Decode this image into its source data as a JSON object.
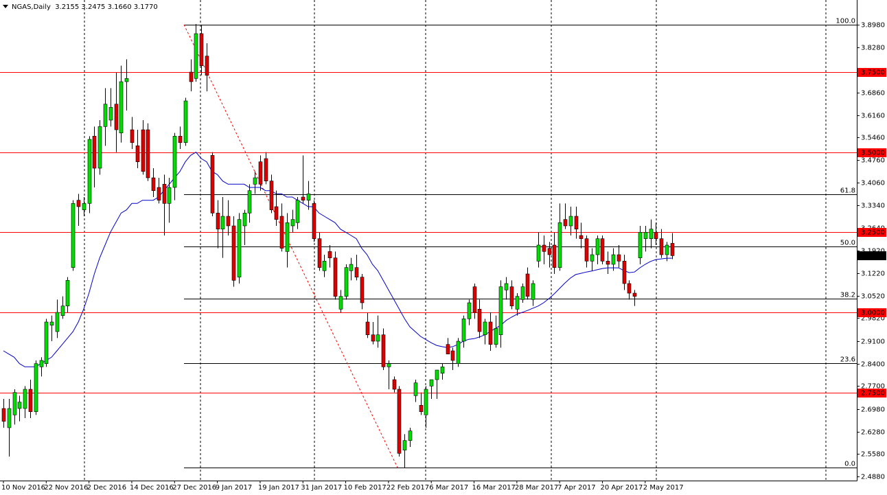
{
  "chart_data": {
    "type": "candlestick",
    "title": "NGAS,Daily  3.2155 3.2475 3.1660 3.1770",
    "ylim": [
      2.475,
      3.975
    ],
    "yticks": [
      {
        "value": 3.898,
        "label": "3.8980"
      },
      {
        "value": 3.828,
        "label": "3.8280"
      },
      {
        "value": 3.686,
        "label": "3.6860"
      },
      {
        "value": 3.616,
        "label": "3.6160"
      },
      {
        "value": 3.546,
        "label": "3.5460"
      },
      {
        "value": 3.476,
        "label": "3.4760"
      },
      {
        "value": 3.406,
        "label": "3.4060"
      },
      {
        "value": 3.334,
        "label": "3.3340"
      },
      {
        "value": 3.264,
        "label": "3.2640"
      },
      {
        "value": 3.192,
        "label": "3.1920"
      },
      {
        "value": 3.122,
        "label": "3.1220"
      },
      {
        "value": 3.052,
        "label": "3.0520"
      },
      {
        "value": 2.982,
        "label": "2.9820"
      },
      {
        "value": 2.91,
        "label": "2.9100"
      },
      {
        "value": 2.84,
        "label": "2.8400"
      },
      {
        "value": 2.77,
        "label": "2.7700"
      },
      {
        "value": 2.698,
        "label": "2.6980"
      },
      {
        "value": 2.628,
        "label": "2.6280"
      },
      {
        "value": 2.558,
        "label": "2.5580"
      },
      {
        "value": 2.488,
        "label": "2.4880"
      }
    ],
    "levels": [
      {
        "value": 3.75,
        "label": "3.7500"
      },
      {
        "value": 3.5,
        "label": "3.5000"
      },
      {
        "value": 3.25,
        "label": "3.2500"
      },
      {
        "value": 3.0,
        "label": "3.0000"
      },
      {
        "value": 2.75,
        "label": "2.7500"
      }
    ],
    "level_color": "#ff0000",
    "last_price": {
      "value": 3.177,
      "label": "3.1770"
    },
    "fib_levels": [
      {
        "value": 3.898,
        "label": "100.0"
      },
      {
        "value": 3.3686,
        "label": "61.8"
      },
      {
        "value": 3.2057,
        "label": "50.0"
      },
      {
        "value": 3.0429,
        "label": "38.2"
      },
      {
        "value": 2.8415,
        "label": "23.6"
      },
      {
        "value": 2.5157,
        "label": "0.0"
      }
    ],
    "fib_color": "#ff0000",
    "up_color": "#00dd00",
    "down_color": "#dd0000",
    "ma_color": "#0000cc",
    "categories": [
      "10 Nov 2016",
      null,
      null,
      null,
      null,
      null,
      null,
      null,
      "22 Nov 2016",
      null,
      null,
      null,
      null,
      null,
      null,
      null,
      "2 Dec 2016",
      null,
      null,
      null,
      null,
      null,
      null,
      null,
      "14 Dec 2016",
      null,
      null,
      null,
      null,
      null,
      null,
      null,
      "27 Dec 2016",
      null,
      null,
      null,
      null,
      null,
      null,
      null,
      "9 Jan 2017",
      null,
      null,
      null,
      null,
      null,
      null,
      null,
      "19 Jan 2017",
      null,
      null,
      null,
      null,
      null,
      null,
      null,
      "31 Jan 2017",
      null,
      null,
      null,
      null,
      null,
      null,
      null,
      "10 Feb 2017",
      null,
      null,
      null,
      null,
      null,
      null,
      null,
      "22 Feb 2017",
      null,
      null,
      null,
      null,
      null,
      null,
      null,
      "6 Mar 2017",
      null,
      null,
      null,
      null,
      null,
      null,
      null,
      "16 Mar 2017",
      null,
      null,
      null,
      null,
      null,
      null,
      null,
      "28 Mar 2017",
      null,
      null,
      null,
      null,
      null,
      null,
      null,
      "7 Apr 2017",
      null,
      null,
      null,
      null,
      null,
      null,
      null,
      "20 Apr 2017",
      null,
      null,
      null,
      null,
      null,
      null,
      null,
      "2 May 2017",
      null,
      null,
      null,
      null,
      null
    ],
    "candles": [
      [
        2.7,
        2.73,
        2.64,
        2.66
      ],
      [
        2.64,
        2.73,
        2.55,
        2.7
      ],
      [
        2.68,
        2.76,
        2.65,
        2.75
      ],
      [
        2.7,
        2.74,
        2.66,
        2.72
      ],
      [
        2.7,
        2.77,
        2.67,
        2.76
      ],
      [
        2.76,
        2.79,
        2.67,
        2.69
      ],
      [
        2.69,
        2.85,
        2.68,
        2.84
      ],
      [
        2.83,
        2.86,
        2.8,
        2.85
      ],
      [
        2.84,
        2.98,
        2.83,
        2.97
      ],
      [
        2.96,
        2.99,
        2.91,
        2.97
      ],
      [
        2.94,
        3.04,
        2.92,
        3.0
      ],
      [
        2.99,
        3.05,
        2.98,
        3.02
      ],
      [
        3.02,
        3.11,
        3.0,
        3.1
      ],
      [
        3.14,
        3.35,
        3.13,
        3.34
      ],
      [
        3.35,
        3.37,
        3.27,
        3.33
      ],
      [
        3.32,
        3.36,
        3.3,
        3.34
      ],
      [
        3.34,
        3.55,
        3.31,
        3.54
      ],
      [
        3.55,
        3.58,
        3.39,
        3.45
      ],
      [
        3.45,
        3.6,
        3.43,
        3.58
      ],
      [
        3.58,
        3.7,
        3.52,
        3.65
      ],
      [
        3.6,
        3.7,
        3.58,
        3.64
      ],
      [
        3.65,
        3.75,
        3.5,
        3.57
      ],
      [
        3.56,
        3.77,
        3.53,
        3.72
      ],
      [
        3.72,
        3.79,
        3.63,
        3.73
      ],
      [
        3.57,
        3.61,
        3.51,
        3.53
      ],
      [
        3.52,
        3.57,
        3.45,
        3.47
      ],
      [
        3.57,
        3.6,
        3.43,
        3.44
      ],
      [
        3.57,
        3.59,
        3.41,
        3.42
      ],
      [
        3.42,
        3.45,
        3.36,
        3.38
      ],
      [
        3.39,
        3.42,
        3.34,
        3.35
      ],
      [
        3.4,
        3.43,
        3.24,
        3.34
      ],
      [
        3.34,
        3.42,
        3.28,
        3.39
      ],
      [
        3.39,
        3.56,
        3.35,
        3.55
      ],
      [
        3.55,
        3.58,
        3.51,
        3.53
      ],
      [
        3.53,
        3.67,
        3.52,
        3.66
      ],
      [
        3.75,
        3.79,
        3.69,
        3.72
      ],
      [
        3.73,
        3.9,
        3.72,
        3.87
      ],
      [
        3.87,
        3.898,
        3.74,
        3.77
      ],
      [
        3.8,
        3.84,
        3.69,
        3.74
      ],
      [
        3.49,
        3.5,
        3.3,
        3.31
      ],
      [
        3.31,
        3.35,
        3.2,
        3.26
      ],
      [
        3.26,
        3.36,
        3.17,
        3.3
      ],
      [
        3.3,
        3.35,
        3.24,
        3.27
      ],
      [
        3.27,
        3.3,
        3.08,
        3.1
      ],
      [
        3.11,
        3.31,
        3.09,
        3.29
      ],
      [
        3.27,
        3.32,
        3.21,
        3.31
      ],
      [
        3.31,
        3.4,
        3.28,
        3.38
      ],
      [
        3.4,
        3.44,
        3.37,
        3.42
      ],
      [
        3.47,
        3.49,
        3.38,
        3.4
      ],
      [
        3.48,
        3.5,
        3.4,
        3.41
      ],
      [
        3.41,
        3.43,
        3.31,
        3.32
      ],
      [
        3.33,
        3.38,
        3.27,
        3.29
      ],
      [
        3.3,
        3.34,
        3.19,
        3.2
      ],
      [
        3.19,
        3.31,
        3.14,
        3.28
      ],
      [
        3.27,
        3.32,
        3.25,
        3.29
      ],
      [
        3.28,
        3.36,
        3.26,
        3.35
      ],
      [
        3.36,
        3.49,
        3.34,
        3.35
      ],
      [
        3.35,
        3.41,
        3.32,
        3.37
      ],
      [
        3.34,
        3.35,
        3.22,
        3.23
      ],
      [
        3.23,
        3.25,
        3.13,
        3.14
      ],
      [
        3.13,
        3.18,
        3.11,
        3.16
      ],
      [
        3.19,
        3.21,
        3.14,
        3.17
      ],
      [
        3.17,
        3.19,
        3.04,
        3.05
      ],
      [
        3.01,
        3.07,
        3.0,
        3.05
      ],
      [
        3.05,
        3.15,
        3.04,
        3.14
      ],
      [
        3.13,
        3.17,
        3.1,
        3.15
      ],
      [
        3.14,
        3.18,
        3.1,
        3.11
      ],
      [
        3.11,
        3.12,
        3.01,
        3.03
      ],
      [
        2.97,
        3.0,
        2.92,
        2.93
      ],
      [
        2.93,
        2.97,
        2.9,
        2.91
      ],
      [
        2.91,
        2.99,
        2.89,
        2.93
      ],
      [
        2.93,
        2.95,
        2.82,
        2.83
      ],
      [
        2.83,
        2.85,
        2.76,
        2.84
      ],
      [
        2.79,
        2.8,
        2.75,
        2.76
      ],
      [
        2.76,
        2.77,
        2.55,
        2.56
      ],
      [
        2.57,
        2.62,
        2.5157,
        2.6
      ],
      [
        2.6,
        2.64,
        2.58,
        2.63
      ],
      [
        2.74,
        2.79,
        2.72,
        2.78
      ],
      [
        2.71,
        2.75,
        2.68,
        2.69
      ],
      [
        2.68,
        2.77,
        2.64,
        2.76
      ],
      [
        2.77,
        2.79,
        2.73,
        2.79
      ],
      [
        2.79,
        2.82,
        2.73,
        2.82
      ],
      [
        2.81,
        2.84,
        2.79,
        2.83
      ],
      [
        2.9,
        2.92,
        2.87,
        2.87
      ],
      [
        2.88,
        2.89,
        2.82,
        2.85
      ],
      [
        2.84,
        2.92,
        2.83,
        2.91
      ],
      [
        2.91,
        2.99,
        2.89,
        2.98
      ],
      [
        2.98,
        3.04,
        2.96,
        3.03
      ],
      [
        3.08,
        3.09,
        2.98,
        3.0
      ],
      [
        3.01,
        3.04,
        2.92,
        2.94
      ],
      [
        2.93,
        2.98,
        2.9,
        2.97
      ],
      [
        2.97,
        3.0,
        2.88,
        2.9
      ],
      [
        2.9,
        2.99,
        2.89,
        2.95
      ],
      [
        2.93,
        3.1,
        2.89,
        3.08
      ],
      [
        3.07,
        3.11,
        3.04,
        3.09
      ],
      [
        3.08,
        3.1,
        3.01,
        3.02
      ],
      [
        3.01,
        3.06,
        2.99,
        3.05
      ],
      [
        3.04,
        3.09,
        3.03,
        3.08
      ],
      [
        3.12,
        3.14,
        3.04,
        3.05
      ],
      [
        3.04,
        3.1,
        3.02,
        3.09
      ],
      [
        3.16,
        3.25,
        3.14,
        3.21
      ],
      [
        3.21,
        3.24,
        3.15,
        3.19
      ],
      [
        3.2,
        3.22,
        3.14,
        3.18
      ],
      [
        3.21,
        3.25,
        3.12,
        3.14
      ],
      [
        3.14,
        3.34,
        3.13,
        3.28
      ],
      [
        3.29,
        3.34,
        3.26,
        3.27
      ],
      [
        3.27,
        3.33,
        3.24,
        3.3
      ],
      [
        3.3,
        3.33,
        3.23,
        3.26
      ],
      [
        3.24,
        3.28,
        3.2,
        3.23
      ],
      [
        3.23,
        3.24,
        3.14,
        3.16
      ],
      [
        3.16,
        3.2,
        3.13,
        3.18
      ],
      [
        3.18,
        3.24,
        3.15,
        3.23
      ],
      [
        3.23,
        3.24,
        3.15,
        3.16
      ],
      [
        3.16,
        3.19,
        3.12,
        3.15
      ],
      [
        3.15,
        3.2,
        3.13,
        3.18
      ],
      [
        3.18,
        3.21,
        3.14,
        3.16
      ],
      [
        3.16,
        3.18,
        3.07,
        3.09
      ],
      [
        3.09,
        3.1,
        3.04,
        3.06
      ],
      [
        3.06,
        3.07,
        3.02,
        3.05
      ],
      [
        3.17,
        3.27,
        3.15,
        3.25
      ],
      [
        3.23,
        3.27,
        3.19,
        3.25
      ],
      [
        3.23,
        3.29,
        3.2,
        3.26
      ],
      [
        3.25,
        3.28,
        3.21,
        3.23
      ],
      [
        3.23,
        3.26,
        3.17,
        3.18
      ],
      [
        3.18,
        3.22,
        3.16,
        3.21
      ],
      [
        3.2155,
        3.2475,
        3.166,
        3.177
      ]
    ],
    "ma": [
      2.88,
      2.87,
      2.86,
      2.84,
      2.83,
      2.83,
      2.83,
      2.84,
      2.85,
      2.86,
      2.88,
      2.9,
      2.92,
      2.94,
      2.97,
      3.01,
      3.06,
      3.12,
      3.17,
      3.21,
      3.25,
      3.28,
      3.31,
      3.32,
      3.34,
      3.34,
      3.35,
      3.35,
      3.35,
      3.36,
      3.38,
      3.4,
      3.42,
      3.44,
      3.47,
      3.49,
      3.5,
      3.48,
      3.47,
      3.44,
      3.43,
      3.41,
      3.4,
      3.4,
      3.4,
      3.4,
      3.39,
      3.39,
      3.39,
      3.38,
      3.38,
      3.37,
      3.37,
      3.36,
      3.36,
      3.35,
      3.34,
      3.33,
      3.33,
      3.31,
      3.3,
      3.29,
      3.28,
      3.26,
      3.25,
      3.24,
      3.23,
      3.2,
      3.18,
      3.15,
      3.13,
      3.1,
      3.07,
      3.04,
      3.01,
      2.98,
      2.955,
      2.94,
      2.925,
      2.915,
      2.905,
      2.897,
      2.893,
      2.89,
      2.893,
      2.9,
      2.91,
      2.916,
      2.918,
      2.923,
      2.93,
      2.94,
      2.95,
      2.96,
      2.975,
      2.985,
      2.994,
      3.0,
      3.006,
      3.013,
      3.02,
      3.03,
      3.043,
      3.058,
      3.075,
      3.092,
      3.107,
      3.118,
      3.122,
      3.126,
      3.129,
      3.133,
      3.137,
      3.139,
      3.139,
      3.139,
      3.131,
      3.124,
      3.126,
      3.139,
      3.15,
      3.159,
      3.165,
      3.167,
      3.169,
      3.169
    ]
  }
}
